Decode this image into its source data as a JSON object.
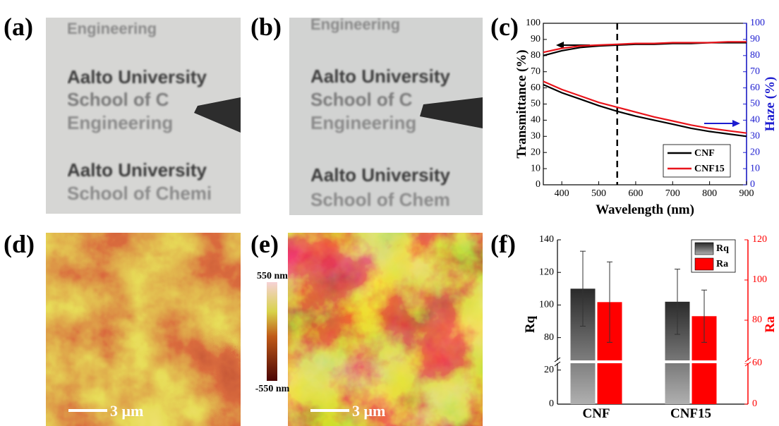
{
  "panels": {
    "labels": [
      "(a)",
      "(b)",
      "(c)",
      "(d)",
      "(e)",
      "(f)"
    ]
  },
  "photos": [
    {
      "lines": [
        "Engineering",
        "Aalto University",
        "School of C",
        "Engineering",
        "Aalto University",
        "School of Chemi"
      ]
    },
    {
      "lines": [
        "Engineering",
        "Aalto University",
        "School of C",
        "Engineering",
        "Aalto University",
        "School of Chem"
      ]
    }
  ],
  "afm": {
    "scale_bars": [
      "3 μm",
      "3 μm"
    ],
    "colorbar": {
      "max_label": "550 nm",
      "min_label": "-550 nm"
    }
  },
  "chart_data": [
    {
      "type": "line",
      "xlabel": "Wavelength (nm)",
      "ylabel": "Transmittance (%)",
      "y2label": "Haze (%)",
      "x": [
        350,
        400,
        450,
        500,
        550,
        600,
        650,
        700,
        750,
        800,
        850,
        900
      ],
      "xlim": [
        350,
        900
      ],
      "xticks": [
        400,
        500,
        600,
        700,
        800,
        900
      ],
      "ylim": [
        0,
        100
      ],
      "yticks": [
        0,
        10,
        20,
        30,
        40,
        50,
        60,
        70,
        80,
        90,
        100
      ],
      "y2lim": [
        0,
        100
      ],
      "y2ticks": [
        0,
        10,
        20,
        30,
        40,
        50,
        60,
        70,
        80,
        90,
        100
      ],
      "vline": 550,
      "legend": "lower right",
      "series": [
        {
          "name": "CNF",
          "color": "#000000",
          "values": [
            80,
            83,
            85,
            86,
            86.5,
            87,
            87,
            87.5,
            87.5,
            88,
            88,
            88
          ]
        },
        {
          "name": "CNF15",
          "color": "#e8141b",
          "values": [
            82,
            84.5,
            86,
            86.5,
            87,
            87.5,
            87.5,
            88,
            88,
            88,
            88.5,
            88.5
          ]
        },
        {
          "name": "CNF",
          "color": "#000000",
          "axis": "y2",
          "values": [
            62,
            57,
            53,
            49,
            45.5,
            42.5,
            40,
            37.5,
            35,
            33,
            31.5,
            30
          ]
        },
        {
          "name": "CNF15",
          "color": "#e8141b",
          "axis": "y2",
          "values": [
            64,
            59,
            55,
            51,
            48,
            45,
            42,
            39.5,
            37,
            35,
            33.5,
            32
          ]
        }
      ]
    },
    {
      "type": "bar",
      "ylabel": "Rq",
      "y2label": "Ra",
      "categories": [
        "CNF",
        "CNF15"
      ],
      "ysegments": [
        [
          0,
          24
        ],
        [
          66,
          140
        ]
      ],
      "yticks": [
        0,
        20,
        80,
        100,
        120,
        140
      ],
      "y2segments": [
        [
          0,
          60
        ],
        [
          60,
          120
        ]
      ],
      "y2ticks": [
        0,
        60,
        80,
        100,
        120
      ],
      "legend": "upper right",
      "series": [
        {
          "name": "Rq",
          "color": "#333333",
          "values": [
            110,
            102
          ],
          "errors": [
            23,
            20
          ]
        },
        {
          "name": "Ra",
          "color": "#ff0000",
          "axis": "y2",
          "values": [
            89,
            82
          ],
          "errors": [
            20,
            13
          ]
        }
      ]
    }
  ]
}
